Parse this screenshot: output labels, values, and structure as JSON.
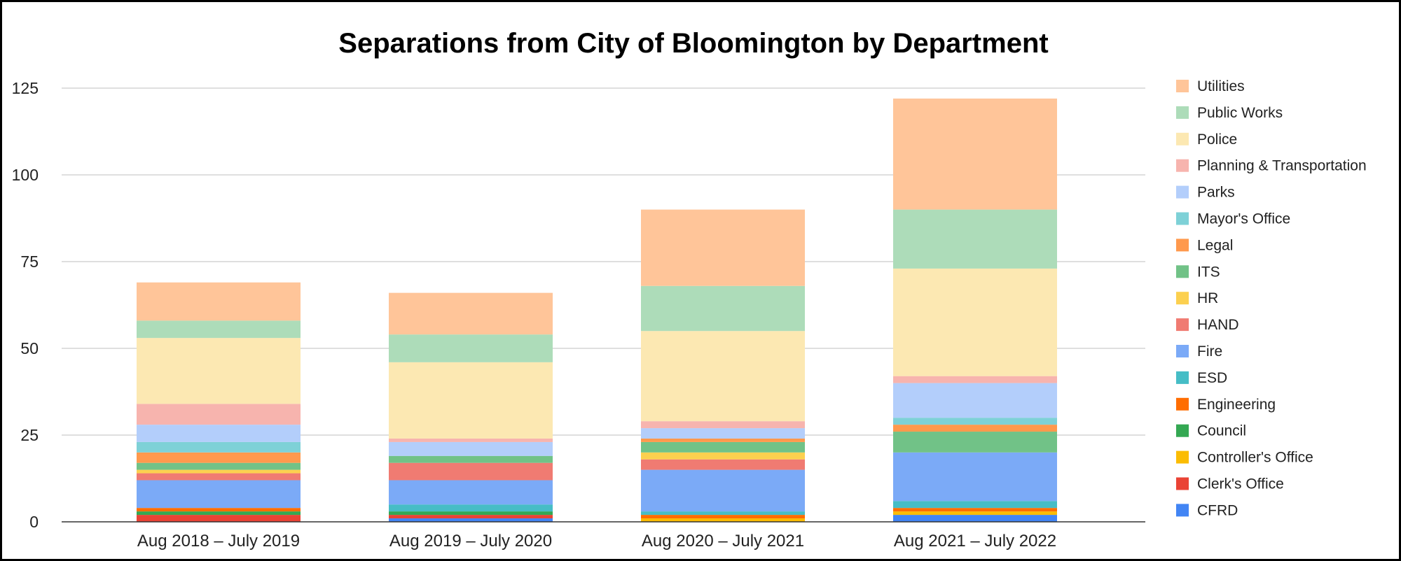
{
  "chart_data": {
    "type": "bar",
    "stacked": true,
    "title": "Separations from City of Bloomington by Department",
    "xlabel": "",
    "ylabel": "",
    "ylim": [
      0,
      125
    ],
    "yticks": [
      0,
      25,
      50,
      75,
      100,
      125
    ],
    "grid": true,
    "legend_position": "right",
    "categories": [
      "Aug 2018 – July 2019",
      "Aug 2019 – July 2020",
      "Aug 2020 – July 2021",
      "Aug 2021 – July 2022"
    ],
    "series": [
      {
        "name": "CFRD",
        "color": "#4285f4",
        "values": [
          0,
          1,
          0,
          2
        ]
      },
      {
        "name": "Clerk's Office",
        "color": "#ea4335",
        "values": [
          2,
          1,
          0,
          0
        ]
      },
      {
        "name": "Controller's Office",
        "color": "#fbbc04",
        "values": [
          0,
          0,
          1,
          1
        ]
      },
      {
        "name": "Council",
        "color": "#34a853",
        "values": [
          1,
          1,
          0,
          0
        ]
      },
      {
        "name": "Engineering",
        "color": "#ff6d01",
        "values": [
          1,
          0,
          1,
          1
        ]
      },
      {
        "name": "ESD",
        "color": "#46bdc6",
        "values": [
          0,
          2,
          1,
          2
        ]
      },
      {
        "name": "Fire",
        "color": "#7baaf7",
        "values": [
          8,
          7,
          12,
          14
        ]
      },
      {
        "name": "HAND",
        "color": "#f07b72",
        "values": [
          2,
          5,
          3,
          0
        ]
      },
      {
        "name": "HR",
        "color": "#fcd04f",
        "values": [
          1,
          0,
          2,
          0
        ]
      },
      {
        "name": "ITS",
        "color": "#71c287",
        "values": [
          2,
          2,
          3,
          6
        ]
      },
      {
        "name": "Legal",
        "color": "#ff994d",
        "values": [
          3,
          0,
          1,
          2
        ]
      },
      {
        "name": "Mayor's Office",
        "color": "#7ed1d7",
        "values": [
          3,
          0,
          0,
          2
        ]
      },
      {
        "name": "Parks",
        "color": "#b3cefb",
        "values": [
          5,
          4,
          3,
          10
        ]
      },
      {
        "name": "Planning & Transportation",
        "color": "#f7b4ae",
        "values": [
          6,
          1,
          2,
          2
        ]
      },
      {
        "name": "Police",
        "color": "#fce8b2",
        "values": [
          19,
          22,
          26,
          31
        ]
      },
      {
        "name": "Public Works",
        "color": "#addcb9",
        "values": [
          5,
          8,
          13,
          17
        ]
      },
      {
        "name": "Utilities",
        "color": "#ffc599",
        "values": [
          11,
          12,
          22,
          32
        ]
      }
    ]
  }
}
